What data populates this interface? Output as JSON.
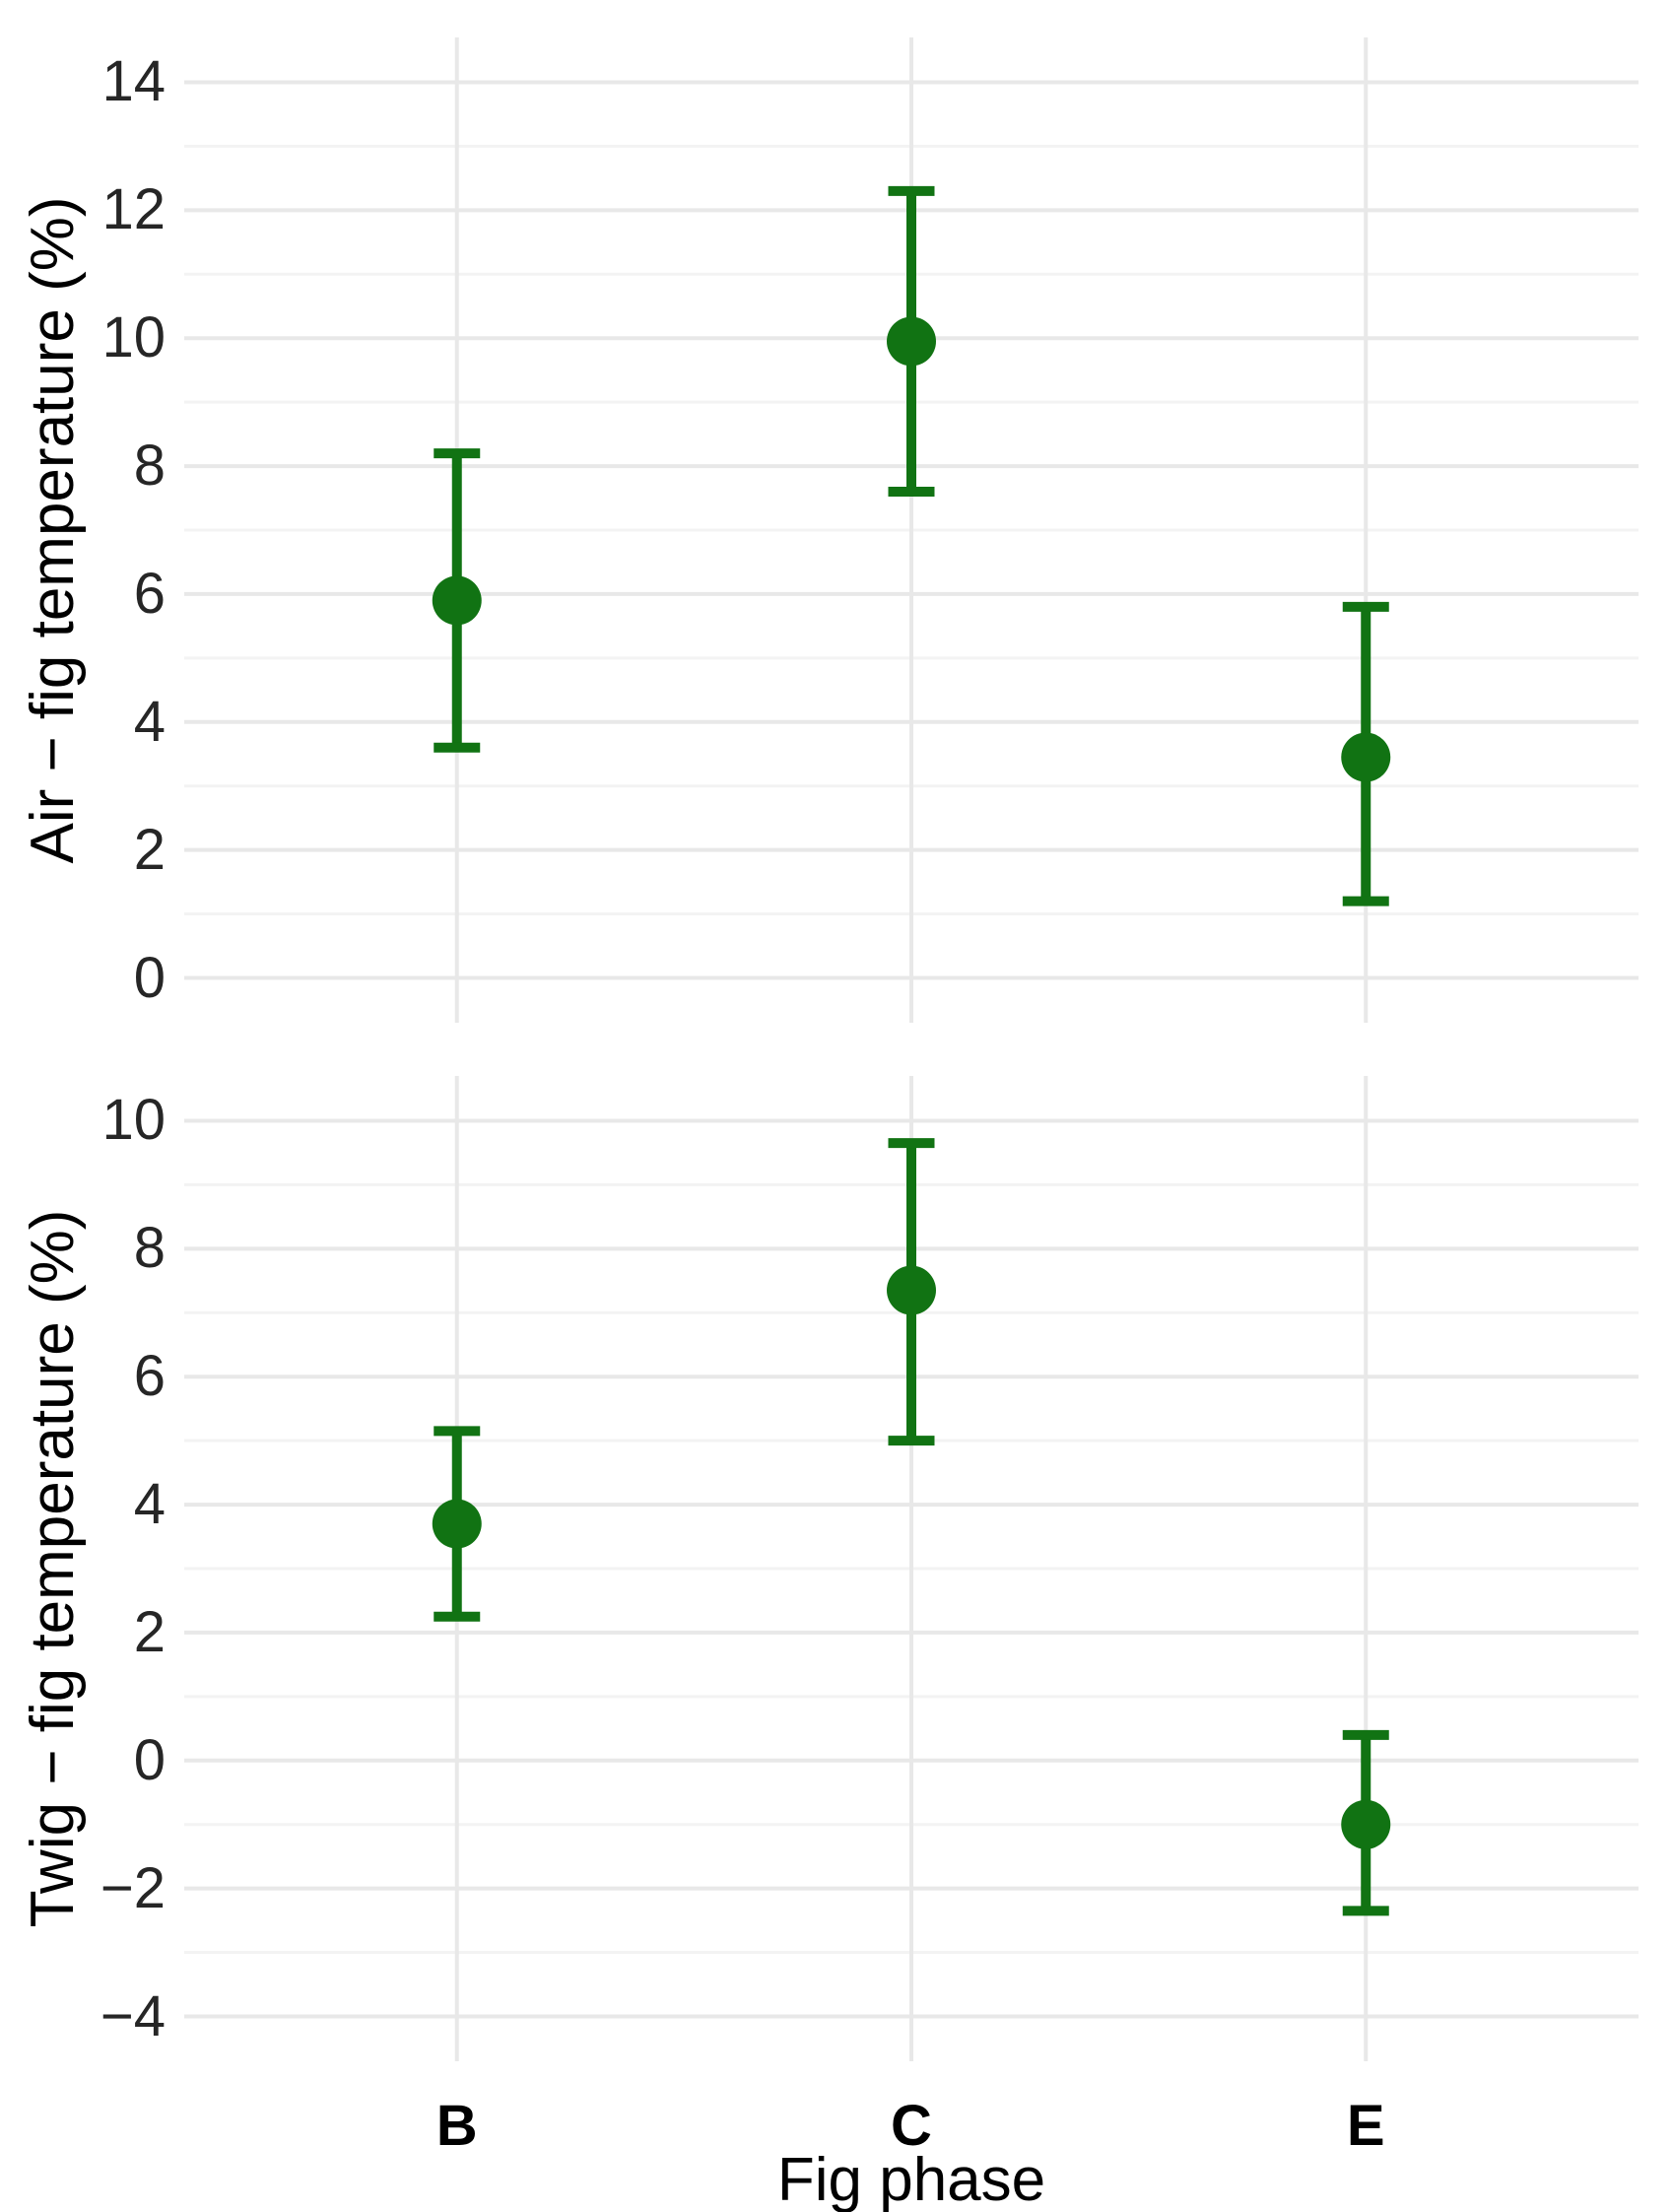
{
  "figure": {
    "x_axis_title": "Fig phase",
    "categories": [
      "B",
      "C",
      "E"
    ]
  },
  "colors": {
    "point": "#117313",
    "grid_major": "#e8e8e8",
    "grid_minor": "#f3f3f3",
    "background": "#ffffff",
    "tick_text": "#262626",
    "title_text": "#000000"
  },
  "chart_data": [
    {
      "type": "pointrange",
      "panel": "top",
      "title": "",
      "xlabel": "",
      "ylabel": "Air − fig temperature (%)",
      "categories": [
        "B",
        "C",
        "E"
      ],
      "yticks": [
        0,
        2,
        4,
        6,
        8,
        10,
        12,
        14
      ],
      "ylim": [
        -0.7,
        14.7
      ],
      "grid": true,
      "legend": "none",
      "points": [
        {
          "category": "B",
          "mean": 5.9,
          "lower": 3.6,
          "upper": 8.2
        },
        {
          "category": "C",
          "mean": 9.95,
          "lower": 7.6,
          "upper": 12.3
        },
        {
          "category": "E",
          "mean": 3.45,
          "lower": 1.2,
          "upper": 5.8
        }
      ]
    },
    {
      "type": "pointrange",
      "panel": "bottom",
      "title": "",
      "xlabel": "Fig phase",
      "ylabel": "Twig − fig temperature (%)",
      "categories": [
        "B",
        "C",
        "E"
      ],
      "yticks": [
        -4,
        -2,
        0,
        2,
        4,
        6,
        8,
        10
      ],
      "ylim": [
        -4.7,
        10.7
      ],
      "grid": true,
      "legend": "none",
      "points": [
        {
          "category": "B",
          "mean": 3.7,
          "lower": 2.25,
          "upper": 5.15
        },
        {
          "category": "C",
          "mean": 7.35,
          "lower": 5.0,
          "upper": 9.65
        },
        {
          "category": "E",
          "mean": -1.0,
          "lower": -2.35,
          "upper": 0.4
        }
      ]
    }
  ]
}
